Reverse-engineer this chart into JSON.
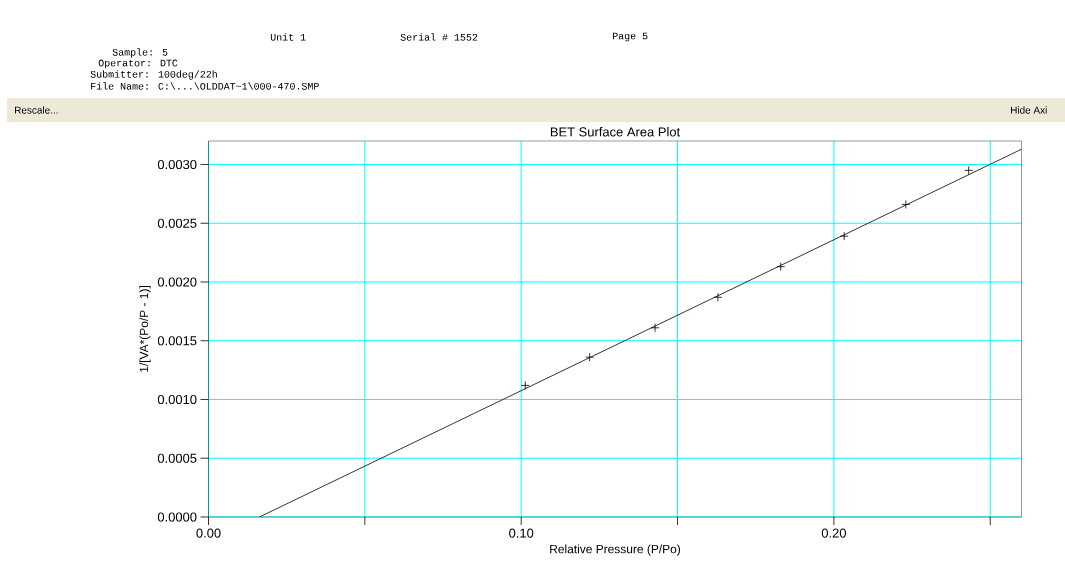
{
  "chart_data": {
    "type": "scatter",
    "title": "BET Surface Area Plot",
    "xlabel": "Relative Pressure (P/Po)",
    "ylabel": "1/[VA*(Po/P - 1)]",
    "xlim": [
      0,
      0.26
    ],
    "ylim": [
      0,
      0.0032
    ],
    "xticks": [
      {
        "value": 0,
        "label": "0.00"
      },
      {
        "value": 0.05,
        "label": null
      },
      {
        "value": 0.1,
        "label": "0.10"
      },
      {
        "value": 0.15,
        "label": null
      },
      {
        "value": 0.2,
        "label": "0.20"
      },
      {
        "value": 0.25,
        "label": null
      }
    ],
    "yticks": [
      {
        "value": 0,
        "label": "0.0000"
      },
      {
        "value": 0.0005,
        "label": "0.0005"
      },
      {
        "value": 0.001,
        "label": "0.0010"
      },
      {
        "value": 0.0015,
        "label": "0.0015"
      },
      {
        "value": 0.002,
        "label": "0.0020"
      },
      {
        "value": 0.0025,
        "label": "0.0025"
      },
      {
        "value": 0.003,
        "label": "0.0030"
      }
    ],
    "grid": true,
    "series": [
      {
        "color": "#000000",
        "marker": "cross",
        "x": [
          0.1013,
          0.1219,
          0.1428,
          0.1629,
          0.183,
          0.2033,
          0.223,
          0.2431
        ],
        "values": [
          0.00112,
          0.00136,
          0.00161,
          0.00187,
          0.00213,
          0.00239,
          0.00266,
          0.00295
        ]
      },
      {
        "type": "line",
        "color": "#000000",
        "marker": "none",
        "x": [
          0.0163,
          0.26
        ],
        "values": [
          0,
          0.00313
        ]
      }
    ],
    "annotations": [
      "Unit 1",
      "Serial # 1552",
      "Page  5",
      "Sample: 5",
      "Operator: DTC",
      "Submitter: 100deg/22h",
      "File Name: C:\\...\\OLDDAT~1\\000-470.SMP",
      "Rescale...",
      "Hide Axi"
    ]
  }
}
